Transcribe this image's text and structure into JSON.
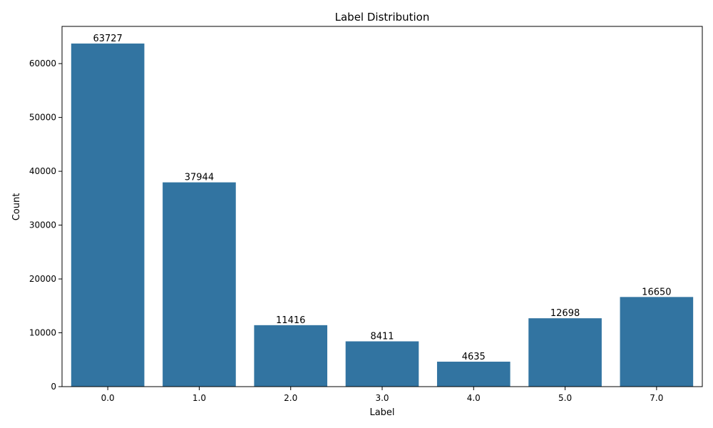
{
  "chart_data": {
    "type": "bar",
    "title": "Label Distribution",
    "xlabel": "Label",
    "ylabel": "Count",
    "categories": [
      "0.0",
      "1.0",
      "2.0",
      "3.0",
      "4.0",
      "5.0",
      "7.0"
    ],
    "values": [
      63727,
      37944,
      11416,
      8411,
      4635,
      12698,
      16650
    ],
    "data_labels": [
      "63727",
      "37944",
      "11416",
      "8411",
      "4635",
      "12698",
      "16650"
    ],
    "ylim": [
      0,
      66913
    ],
    "yticks": [
      0,
      10000,
      20000,
      30000,
      40000,
      50000,
      60000
    ],
    "ytick_labels": [
      "0",
      "10000",
      "20000",
      "30000",
      "40000",
      "50000",
      "60000"
    ],
    "bar_color": "#3274a1",
    "grid": false,
    "legend": "none"
  }
}
